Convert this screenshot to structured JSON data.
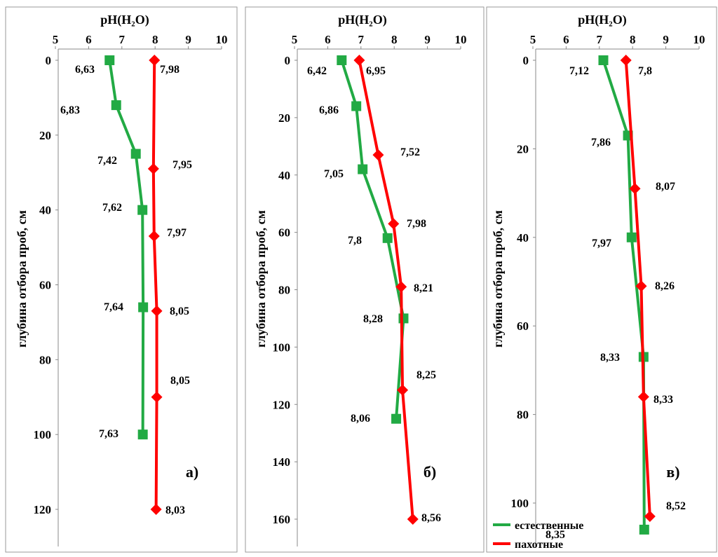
{
  "chart_data": [
    {
      "type": "line",
      "panel_label": "а)",
      "title": "pH(H₂O)",
      "ylabel": "глубина отбора проб, см",
      "xlim": [
        5,
        10
      ],
      "ylim": [
        0,
        130
      ],
      "x_ticks": [
        "5",
        "6",
        "7",
        "8",
        "9",
        "10"
      ],
      "y_ticks": [
        "0",
        "20",
        "40",
        "60",
        "80",
        "100",
        "120"
      ],
      "series": [
        {
          "name": "естественные",
          "color": "#22aa44",
          "marker": "square",
          "points": [
            {
              "x": 6.63,
              "y": 0,
              "label": "6,63"
            },
            {
              "x": 6.83,
              "y": 12,
              "label": "6,83"
            },
            {
              "x": 7.42,
              "y": 25,
              "label": "7,42"
            },
            {
              "x": 7.62,
              "y": 40,
              "label": "7,62"
            },
            {
              "x": 7.64,
              "y": 66,
              "label": "7,64"
            },
            {
              "x": 7.63,
              "y": 100,
              "label": "7,63"
            }
          ]
        },
        {
          "name": "пахотные",
          "color": "#ff0000",
          "marker": "diamond",
          "points": [
            {
              "x": 7.98,
              "y": 0,
              "label": "7,98"
            },
            {
              "x": 7.95,
              "y": 29,
              "label": "7,95"
            },
            {
              "x": 7.97,
              "y": 47,
              "label": "7,97"
            },
            {
              "x": 8.05,
              "y": 67,
              "label": "8,05"
            },
            {
              "x": 8.05,
              "y": 90,
              "label": "8,05"
            },
            {
              "x": 8.03,
              "y": 120,
              "label": "8,03"
            }
          ]
        }
      ]
    },
    {
      "type": "line",
      "panel_label": "б)",
      "title": "pH(H₂O)",
      "ylabel": "глубина отбора проб, см",
      "xlim": [
        5,
        10
      ],
      "ylim": [
        0,
        170
      ],
      "x_ticks": [
        "5",
        "6",
        "7",
        "8",
        "9",
        "10"
      ],
      "y_ticks": [
        "0",
        "20",
        "40",
        "60",
        "80",
        "100",
        "120",
        "140",
        "160"
      ],
      "series": [
        {
          "name": "естественные",
          "color": "#22aa44",
          "marker": "square",
          "points": [
            {
              "x": 6.42,
              "y": 0,
              "label": "6,42"
            },
            {
              "x": 6.86,
              "y": 16,
              "label": "6,86"
            },
            {
              "x": 7.05,
              "y": 38,
              "label": "7,05"
            },
            {
              "x": 7.8,
              "y": 62,
              "label": "7,8"
            },
            {
              "x": 8.28,
              "y": 90,
              "label": "8,28"
            },
            {
              "x": 8.06,
              "y": 125,
              "label": "8,06"
            }
          ]
        },
        {
          "name": "пахотные",
          "color": "#ff0000",
          "marker": "diamond",
          "points": [
            {
              "x": 6.95,
              "y": 0,
              "label": "6,95"
            },
            {
              "x": 7.52,
              "y": 33,
              "label": "7,52"
            },
            {
              "x": 7.98,
              "y": 57,
              "label": "7,98"
            },
            {
              "x": 8.21,
              "y": 79,
              "label": "8,21"
            },
            {
              "x": 8.25,
              "y": 115,
              "label": "8,25"
            },
            {
              "x": 8.56,
              "y": 160,
              "label": "8,56"
            }
          ]
        }
      ]
    },
    {
      "type": "line",
      "panel_label": "в)",
      "title": "pH(H₂O)",
      "ylabel": "глубина отбора проб, см",
      "xlim": [
        5,
        10
      ],
      "ylim": [
        0,
        106
      ],
      "x_ticks": [
        "5",
        "6",
        "7",
        "8",
        "9",
        "10"
      ],
      "y_ticks": [
        "0",
        "20",
        "40",
        "60",
        "80",
        "100"
      ],
      "legend": [
        {
          "name": "естественные",
          "color": "#22aa44"
        },
        {
          "name": "пахотные",
          "color": "#ff0000"
        }
      ],
      "series": [
        {
          "name": "естественные",
          "color": "#22aa44",
          "marker": "square",
          "points": [
            {
              "x": 7.12,
              "y": 0,
              "label": "7,12"
            },
            {
              "x": 7.86,
              "y": 17,
              "label": "7,86"
            },
            {
              "x": 7.97,
              "y": 40,
              "label": "7,97"
            },
            {
              "x": 8.33,
              "y": 67,
              "label": "8,33"
            },
            {
              "x": 8.35,
              "y": 106,
              "label": "8,35"
            }
          ]
        },
        {
          "name": "пахотные",
          "color": "#ff0000",
          "marker": "diamond",
          "points": [
            {
              "x": 7.8,
              "y": 0,
              "label": "7,8"
            },
            {
              "x": 8.07,
              "y": 29,
              "label": "8,07"
            },
            {
              "x": 8.26,
              "y": 51,
              "label": "8,26"
            },
            {
              "x": 8.33,
              "y": 76,
              "label": "8,33"
            },
            {
              "x": 8.52,
              "y": 103,
              "label": "8,52"
            }
          ]
        }
      ]
    }
  ]
}
